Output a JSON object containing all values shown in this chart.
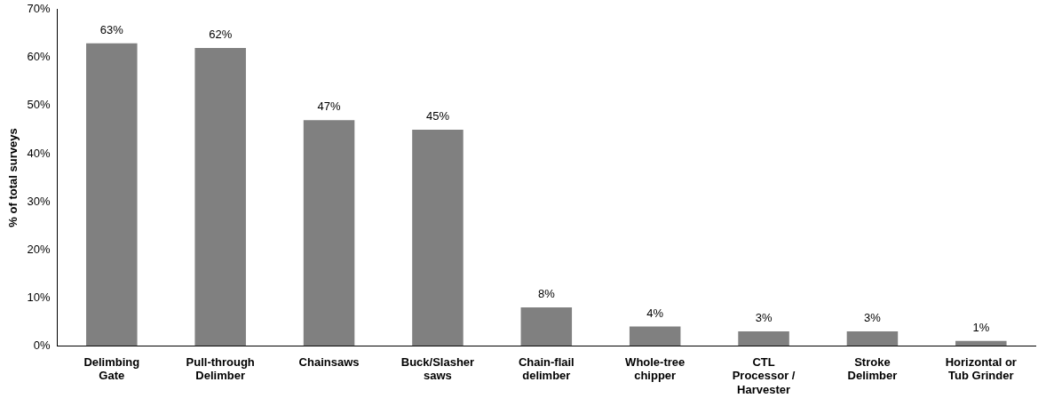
{
  "chart_data": {
    "type": "bar",
    "ylabel": "% of total surveys",
    "categories": [
      "Delimbing Gate",
      "Pull-through Delimber",
      "Chainsaws",
      "Buck/Slasher saws",
      "Chain-flail delimber",
      "Whole-tree chipper",
      "CTL Processor / Harvester",
      "Stroke Delimber",
      "Horizontal or Tub Grinder"
    ],
    "values": [
      63,
      62,
      47,
      45,
      8,
      4,
      3,
      3,
      1
    ],
    "value_labels": [
      "63%",
      "62%",
      "47%",
      "45%",
      "8%",
      "4%",
      "3%",
      "3%",
      "1%"
    ],
    "color": "#808080",
    "ylim": [
      0,
      70
    ],
    "yticks": [
      {
        "value": 0,
        "label": "0%"
      },
      {
        "value": 10,
        "label": "10%"
      },
      {
        "value": 20,
        "label": "20%"
      },
      {
        "value": 30,
        "label": "30%"
      },
      {
        "value": 40,
        "label": "40%"
      },
      {
        "value": 50,
        "label": "50%"
      },
      {
        "value": 60,
        "label": "60%"
      },
      {
        "value": 70,
        "label": "70%"
      }
    ],
    "grid": false,
    "legend": false
  }
}
